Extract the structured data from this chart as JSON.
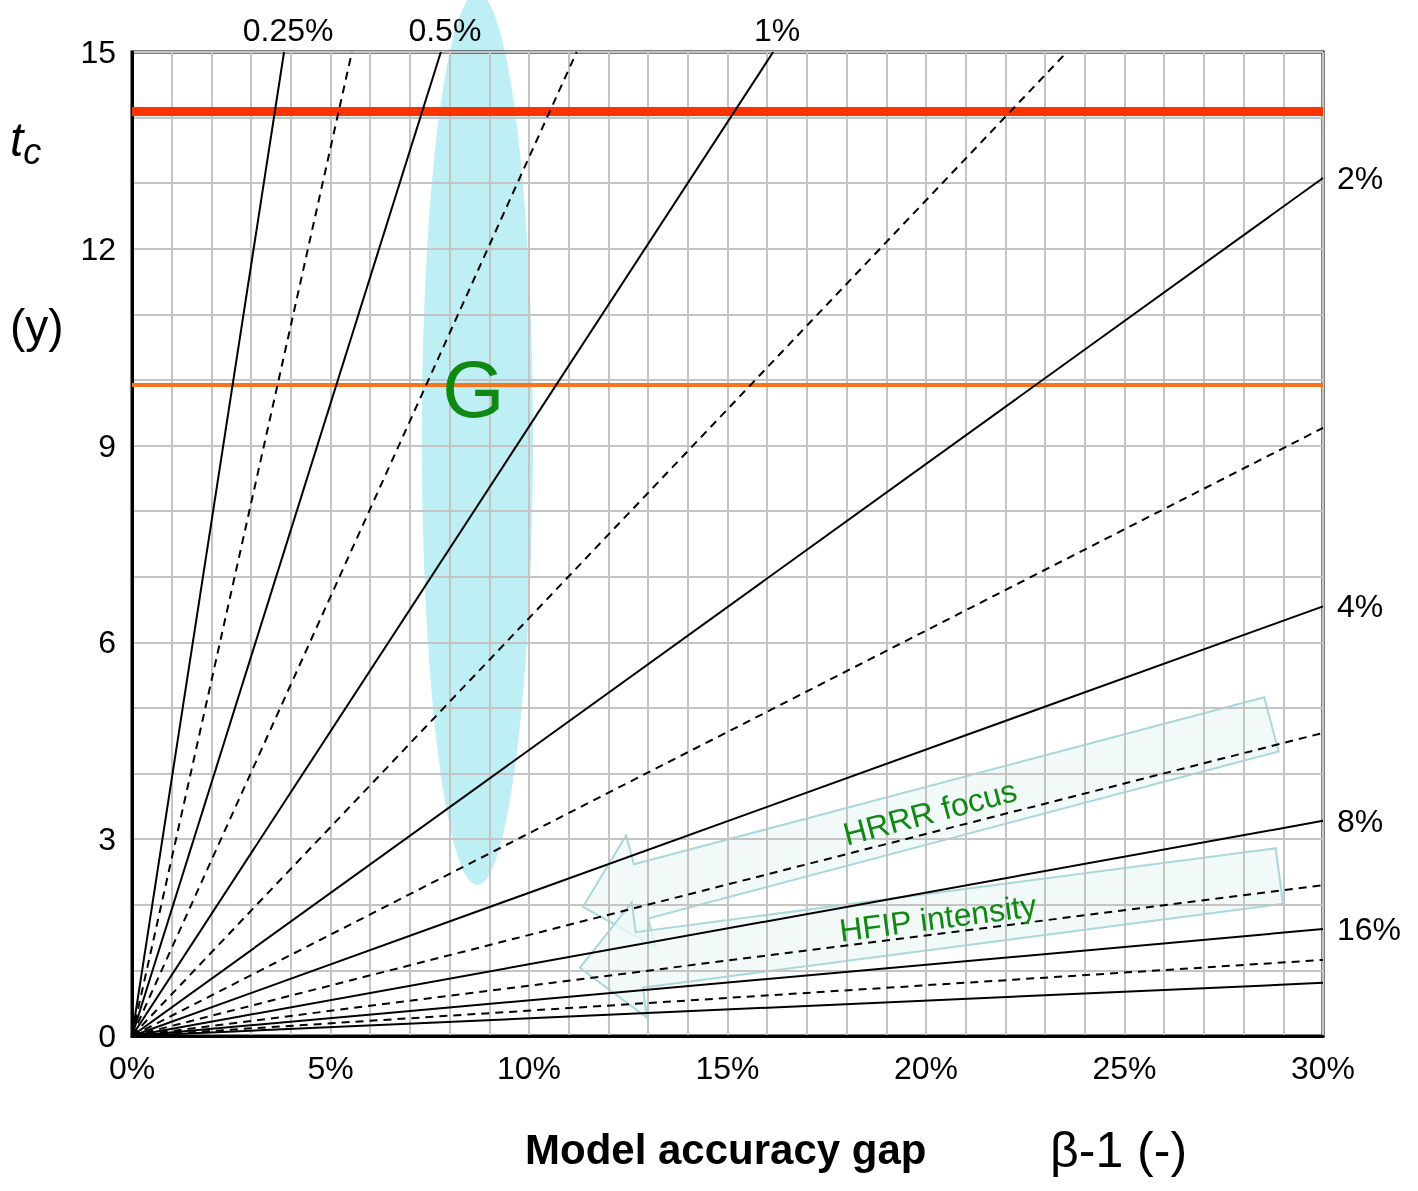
{
  "chart_data": {
    "type": "line",
    "xlabel": "Model accuracy gap",
    "ylabel": "t$_{c}$ (y)",
    "annotations": [
      "β-1 (-)",
      {
        "text": "G",
        "x": 8.6,
        "y": 9.85
      },
      "HRRR focus",
      "HFIP intensity"
    ],
    "xlim": [
      0,
      30
    ],
    "xticks": [
      {
        "value": 0,
        "label": "0%"
      },
      {
        "value": 5,
        "label": "5%"
      },
      {
        "value": 10,
        "label": "10%"
      },
      {
        "value": 15,
        "label": "15%"
      },
      {
        "value": 20,
        "label": "20%"
      },
      {
        "value": 25,
        "label": "25%"
      },
      {
        "value": 30,
        "label": "30%"
      }
    ],
    "ylim": [
      0,
      15
    ],
    "yticks": [
      0,
      3,
      6,
      9,
      12,
      15
    ],
    "grid": true,
    "marker": "none",
    "series": [
      {
        "name": "0.25%",
        "color": "#000000",
        "line_style": "solid",
        "x": [
          0,
          3.83
        ],
        "values": [
          0,
          15
        ]
      },
      {
        "color": "#000000",
        "line_style": "dashed",
        "x": [
          0,
          5.54
        ],
        "values": [
          0,
          15
        ]
      },
      {
        "name": "0.5%",
        "color": "#000000",
        "line_style": "solid",
        "x": [
          0,
          7.78
        ],
        "values": [
          0,
          15
        ]
      },
      {
        "color": "#000000",
        "line_style": "dashed",
        "x": [
          0,
          11.2
        ],
        "values": [
          0,
          15
        ]
      },
      {
        "name": "1%",
        "color": "#000000",
        "line_style": "solid",
        "x": [
          0,
          16.15
        ],
        "values": [
          0,
          15
        ]
      },
      {
        "color": "#000000",
        "line_style": "dashed",
        "x": [
          0,
          23.55
        ],
        "values": [
          0,
          15
        ]
      },
      {
        "name": "2%",
        "color": "#000000",
        "line_style": "solid",
        "x": [
          0,
          30
        ],
        "values": [
          0,
          13.08
        ]
      },
      {
        "color": "#000000",
        "line_style": "dashed",
        "x": [
          0,
          30
        ],
        "values": [
          0,
          9.27
        ]
      },
      {
        "name": "4%",
        "color": "#000000",
        "line_style": "solid",
        "x": [
          0,
          30
        ],
        "values": [
          0,
          6.55
        ]
      },
      {
        "color": "#000000",
        "line_style": "dashed",
        "x": [
          0,
          30
        ],
        "values": [
          0,
          4.62
        ]
      },
      {
        "name": "8%",
        "color": "#000000",
        "line_style": "solid",
        "x": [
          0,
          30
        ],
        "values": [
          0,
          3.28
        ]
      },
      {
        "color": "#000000",
        "line_style": "dashed",
        "x": [
          0,
          30
        ],
        "values": [
          0,
          2.3
        ]
      },
      {
        "name": "16%",
        "color": "#000000",
        "line_style": "solid",
        "x": [
          0,
          30
        ],
        "values": [
          0,
          1.63
        ]
      },
      {
        "color": "#000000",
        "line_style": "dashed",
        "x": [
          0,
          30
        ],
        "values": [
          0,
          1.16
        ]
      },
      {
        "color": "#000000",
        "line_style": "solid",
        "x": [
          0,
          30
        ],
        "values": [
          0,
          0.81
        ]
      }
    ],
    "ref_lines": [
      {
        "axis": "y",
        "value": 14.1,
        "color": "#ff3300",
        "line_style": "solid"
      },
      {
        "axis": "y",
        "value": 9.93,
        "color": "#f7731c",
        "line_style": "solid"
      }
    ]
  }
}
